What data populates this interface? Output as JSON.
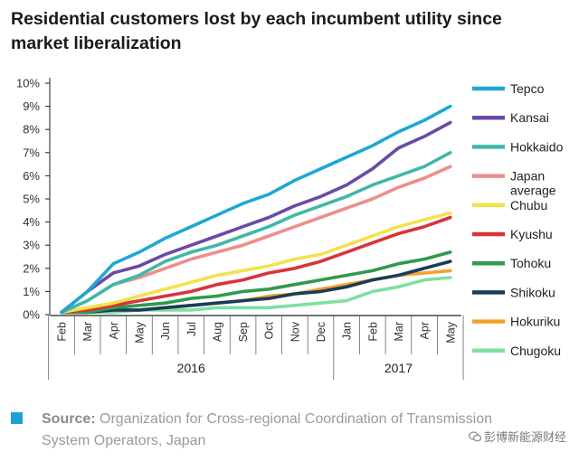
{
  "page": {
    "title": "Residential customers lost by each incumbent utility since market liberalization",
    "source_label": "Source:",
    "source_text": "Organization for Cross-regional Coordination of Transmission System Operators, Japan",
    "watermark": "彭博新能源财经"
  },
  "chart_data": {
    "type": "line",
    "title": "Residential customers lost by each incumbent utility since market liberalization",
    "xlabel": "",
    "ylabel": "",
    "ylim": [
      0,
      10
    ],
    "grid": false,
    "legend_position": "right",
    "categories": [
      "Feb",
      "Mar",
      "Apr",
      "May",
      "Jun",
      "Jul",
      "Aug",
      "Sep",
      "Oct",
      "Nov",
      "Dec",
      "Jan",
      "Feb",
      "Mar",
      "Apr",
      "May"
    ],
    "year_groups": [
      {
        "label": "2016",
        "start": 0,
        "end": 10
      },
      {
        "label": "2017",
        "start": 11,
        "end": 15
      }
    ],
    "y_ticks": [
      {
        "value": 0,
        "label": "0%"
      },
      {
        "value": 1,
        "label": "1%"
      },
      {
        "value": 2,
        "label": "2%"
      },
      {
        "value": 3,
        "label": "3%"
      },
      {
        "value": 4,
        "label": "4%"
      },
      {
        "value": 5,
        "label": "5%"
      },
      {
        "value": 6,
        "label": "6%"
      },
      {
        "value": 7,
        "label": "7%"
      },
      {
        "value": 8,
        "label": "8%"
      },
      {
        "value": 9,
        "label": "9%"
      },
      {
        "value": 10,
        "label": "10%"
      }
    ],
    "series": [
      {
        "name": "Tepco",
        "color": "#1ea7d6",
        "values": [
          0.1,
          1.0,
          2.2,
          2.7,
          3.3,
          3.8,
          4.3,
          4.8,
          5.2,
          5.8,
          6.3,
          6.8,
          7.3,
          7.9,
          8.4,
          9.0
        ]
      },
      {
        "name": "Kansai",
        "color": "#6b4aa5",
        "values": [
          0.1,
          1.0,
          1.8,
          2.1,
          2.6,
          3.0,
          3.4,
          3.8,
          4.2,
          4.7,
          5.1,
          5.6,
          6.3,
          7.2,
          7.7,
          8.3
        ]
      },
      {
        "name": "Hokkaido",
        "color": "#3fb8a8",
        "values": [
          0.1,
          0.6,
          1.3,
          1.7,
          2.3,
          2.7,
          3.0,
          3.4,
          3.8,
          4.3,
          4.7,
          5.1,
          5.6,
          6.0,
          6.4,
          7.0
        ]
      },
      {
        "name": "Japan average",
        "color": "#ec8f8a",
        "values": [
          0.1,
          0.6,
          1.3,
          1.6,
          2.0,
          2.4,
          2.7,
          3.0,
          3.4,
          3.8,
          4.2,
          4.6,
          5.0,
          5.5,
          5.9,
          6.4
        ]
      },
      {
        "name": "Chubu",
        "color": "#f3e24a",
        "values": [
          0.1,
          0.3,
          0.5,
          0.8,
          1.1,
          1.4,
          1.7,
          1.9,
          2.1,
          2.4,
          2.6,
          3.0,
          3.4,
          3.8,
          4.1,
          4.4
        ]
      },
      {
        "name": "Kyushu",
        "color": "#d8343a",
        "values": [
          0.1,
          0.2,
          0.4,
          0.6,
          0.8,
          1.0,
          1.3,
          1.5,
          1.8,
          2.0,
          2.3,
          2.7,
          3.1,
          3.5,
          3.8,
          4.2
        ]
      },
      {
        "name": "Tohoku",
        "color": "#2f9a4c",
        "values": [
          0.1,
          0.1,
          0.3,
          0.4,
          0.5,
          0.7,
          0.8,
          1.0,
          1.1,
          1.3,
          1.5,
          1.7,
          1.9,
          2.2,
          2.4,
          2.7
        ]
      },
      {
        "name": "Shikoku",
        "color": "#1a3c5c",
        "values": [
          0.1,
          0.1,
          0.2,
          0.2,
          0.3,
          0.4,
          0.5,
          0.6,
          0.7,
          0.9,
          1.0,
          1.2,
          1.5,
          1.7,
          2.0,
          2.3
        ]
      },
      {
        "name": "Hokuriku",
        "color": "#f5a22b",
        "values": [
          0.1,
          0.1,
          0.2,
          0.2,
          0.3,
          0.4,
          0.5,
          0.6,
          0.8,
          0.9,
          1.1,
          1.3,
          1.5,
          1.7,
          1.8,
          1.9
        ]
      },
      {
        "name": "Chugoku",
        "color": "#7ee0a2",
        "values": [
          0.1,
          0.1,
          0.1,
          0.2,
          0.2,
          0.2,
          0.3,
          0.3,
          0.3,
          0.4,
          0.5,
          0.6,
          1.0,
          1.2,
          1.5,
          1.6
        ]
      }
    ]
  }
}
